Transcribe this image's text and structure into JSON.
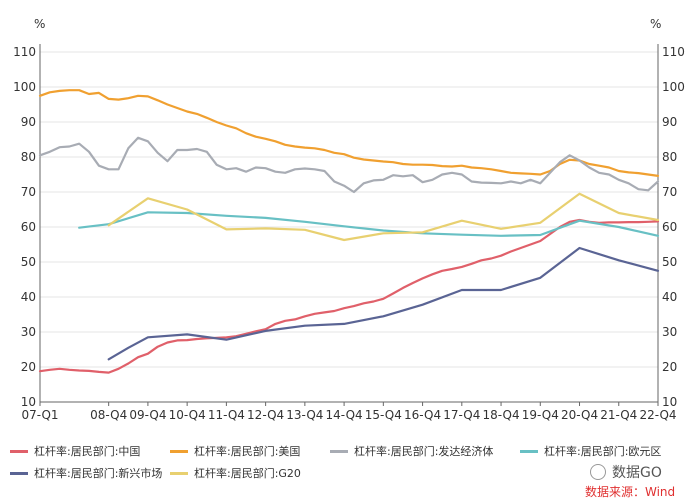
{
  "chart_data": {
    "type": "line",
    "title": "",
    "ylabel_left": "%",
    "ylabel_right": "%",
    "ylim": [
      10,
      110
    ],
    "yticks": [
      "10",
      "20",
      "30",
      "40",
      "50",
      "60",
      "70",
      "80",
      "90",
      "100",
      "110"
    ],
    "xticks": [
      "07-Q1",
      "08-Q4",
      "09-Q4",
      "10-Q4",
      "11-Q4",
      "12-Q4",
      "13-Q4",
      "14-Q4",
      "15-Q4",
      "16-Q4",
      "17-Q4",
      "18-Q4",
      "19-Q4",
      "20-Q4",
      "21-Q4",
      "22-Q4"
    ],
    "xtick_positions": [
      0,
      7,
      11,
      15,
      19,
      23,
      27,
      31,
      35,
      39,
      43,
      47,
      51,
      55,
      59,
      63
    ],
    "series": [
      {
        "name": "杠杆率:居民部门:中国",
        "color": "#e0606a",
        "x": [
          0,
          1,
          2,
          3,
          4,
          5,
          6,
          7,
          8,
          9,
          10,
          11,
          12,
          13,
          14,
          15,
          16,
          17,
          18,
          19,
          20,
          21,
          22,
          23,
          24,
          25,
          26,
          27,
          28,
          29,
          30,
          31,
          32,
          33,
          34,
          35,
          36,
          37,
          38,
          39,
          40,
          41,
          42,
          43,
          44,
          45,
          46,
          47,
          48,
          49,
          50,
          51,
          52,
          53,
          54,
          55,
          56,
          57,
          58,
          59,
          60,
          61,
          62,
          63
        ],
        "values": [
          18.8,
          19.2,
          19.5,
          19.2,
          19.0,
          18.9,
          18.6,
          18.4,
          19.5,
          21.0,
          22.8,
          23.8,
          25.8,
          27.0,
          27.6,
          27.7,
          28.0,
          28.2,
          28.3,
          28.5,
          28.8,
          29.5,
          30.2,
          30.8,
          32.3,
          33.2,
          33.6,
          34.5,
          35.2,
          35.6,
          36.0,
          36.8,
          37.4,
          38.2,
          38.7,
          39.5,
          41.0,
          42.6,
          44.0,
          45.3,
          46.5,
          47.5,
          48.0,
          48.6,
          49.5,
          50.5,
          51.0,
          51.8,
          53.0,
          54.0,
          55.0,
          56.0,
          58.0,
          60.0,
          61.5,
          62.0,
          61.5,
          61.2,
          61.3,
          61.3,
          61.4,
          61.4,
          61.5,
          61.6
        ]
      },
      {
        "name": "杠杆率:居民部门:美国",
        "color": "#f0a030",
        "x": [
          0,
          1,
          2,
          3,
          4,
          5,
          6,
          7,
          8,
          9,
          10,
          11,
          12,
          13,
          14,
          15,
          16,
          17,
          18,
          19,
          20,
          21,
          22,
          23,
          24,
          25,
          26,
          27,
          28,
          29,
          30,
          31,
          32,
          33,
          34,
          35,
          36,
          37,
          38,
          39,
          40,
          41,
          42,
          43,
          44,
          45,
          46,
          47,
          48,
          49,
          50,
          51,
          52,
          53,
          54,
          55,
          56,
          57,
          58,
          59,
          60,
          61,
          62,
          63
        ],
        "values": [
          97.5,
          98.5,
          98.9,
          99.1,
          99.1,
          98.0,
          98.3,
          96.6,
          96.4,
          96.8,
          97.5,
          97.3,
          96.2,
          95.0,
          94.0,
          93.0,
          92.3,
          91.2,
          90.0,
          89.0,
          88.2,
          86.8,
          85.8,
          85.2,
          84.5,
          83.5,
          83.0,
          82.7,
          82.5,
          82.0,
          81.2,
          80.8,
          79.8,
          79.3,
          79.0,
          78.7,
          78.5,
          78.0,
          77.8,
          77.8,
          77.7,
          77.4,
          77.3,
          77.5,
          77.0,
          76.8,
          76.5,
          76.0,
          75.5,
          75.3,
          75.2,
          75.0,
          76.0,
          78.0,
          79.2,
          79.0,
          78.0,
          77.5,
          77.0,
          76.0,
          75.6,
          75.4,
          75.0,
          74.6
        ]
      },
      {
        "name": "杠杆率:居民部门:发达经济体",
        "color": "#a8acb4",
        "x": [
          0,
          1,
          2,
          3,
          4,
          5,
          6,
          7,
          8,
          9,
          10,
          11,
          12,
          13,
          14,
          15,
          16,
          17,
          18,
          19,
          20,
          21,
          22,
          23,
          24,
          25,
          26,
          27,
          28,
          29,
          30,
          31,
          32,
          33,
          34,
          35,
          36,
          37,
          38,
          39,
          40,
          41,
          42,
          43,
          44,
          45,
          46,
          47,
          48,
          49,
          50,
          51,
          52,
          53,
          54,
          55,
          56,
          57,
          58,
          59,
          60,
          61,
          62,
          63
        ],
        "values": [
          80.5,
          81.5,
          82.8,
          83.0,
          83.8,
          81.5,
          77.5,
          76.5,
          76.5,
          82.5,
          85.5,
          84.5,
          81.2,
          78.8,
          82.0,
          82.0,
          82.3,
          81.5,
          77.8,
          76.5,
          76.8,
          75.8,
          77.0,
          76.8,
          75.8,
          75.5,
          76.5,
          76.7,
          76.5,
          76.0,
          73.0,
          71.8,
          70.0,
          72.5,
          73.3,
          73.5,
          74.8,
          74.5,
          74.8,
          72.8,
          73.5,
          75.0,
          75.5,
          75.0,
          73.0,
          72.7,
          72.6,
          72.5,
          73.0,
          72.5,
          73.5,
          72.5,
          75.5,
          78.5,
          80.5,
          79.0,
          77.0,
          75.5,
          75.0,
          73.5,
          72.5,
          70.8,
          70.5,
          73.0
        ]
      },
      {
        "name": "杠杆率:居民部门:欧元区",
        "color": "#68c0c4",
        "x": [
          4,
          7,
          11,
          15,
          19,
          23,
          27,
          31,
          35,
          39,
          43,
          47,
          51,
          55,
          59,
          63
        ],
        "values": [
          59.8,
          60.8,
          64.2,
          64.0,
          63.2,
          62.6,
          61.5,
          60.2,
          59.0,
          58.2,
          57.8,
          57.5,
          57.7,
          61.8,
          60.0,
          57.5
        ]
      },
      {
        "name": "杠杆率:居民部门:新兴市场",
        "color": "#5a6494",
        "x": [
          7,
          9,
          11,
          15,
          19,
          23,
          27,
          31,
          35,
          39,
          43,
          47,
          51,
          55,
          59,
          63
        ],
        "values": [
          22.2,
          25.5,
          28.5,
          29.3,
          27.8,
          30.3,
          31.8,
          32.3,
          34.5,
          37.8,
          42.0,
          42.0,
          45.5,
          54.0,
          50.5,
          47.5
        ]
      },
      {
        "name": "杠杆率:居民部门:G20",
        "color": "#e8d070",
        "x": [
          7,
          11,
          15,
          19,
          23,
          27,
          31,
          35,
          39,
          43,
          47,
          51,
          55,
          59,
          63
        ],
        "values": [
          60.5,
          68.2,
          65.0,
          59.3,
          59.6,
          59.2,
          56.3,
          58.2,
          58.5,
          61.8,
          59.5,
          61.2,
          69.5,
          64.0,
          62.0
        ]
      }
    ]
  },
  "legend": {
    "row1": [
      "杠杆率:居民部门:中国",
      "杠杆率:居民部门:美国",
      "杠杆率:居民部门:发达经济体",
      "杠杆率:居民部门:欧元区"
    ],
    "row2": [
      "杠杆率:居民部门:新兴市场",
      "杠杆率:居民部门:G20"
    ]
  },
  "brand": {
    "label": "数据GO",
    "icon": "wechat-icon"
  },
  "source": "数据来源：Wind"
}
